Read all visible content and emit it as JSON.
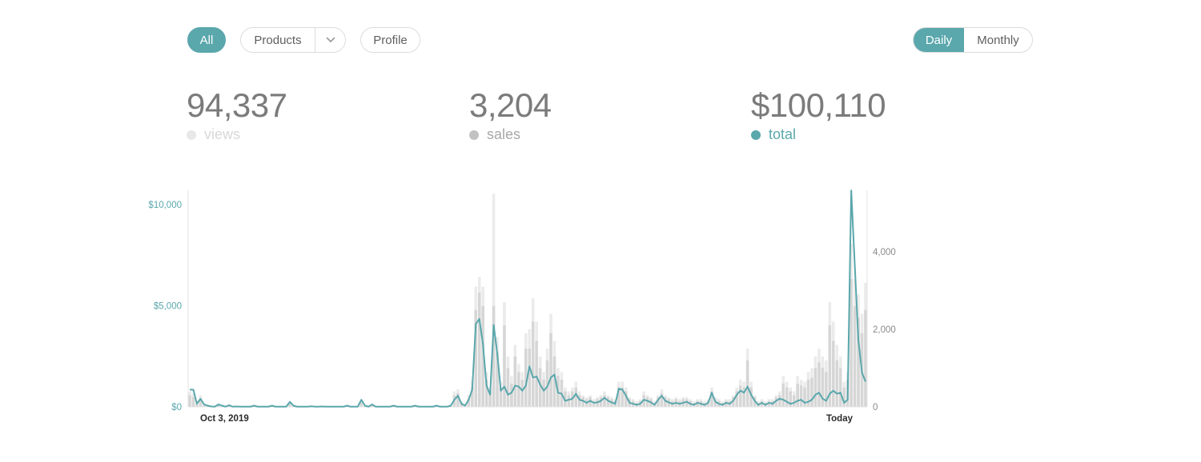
{
  "filters": {
    "all_label": "All",
    "products_label": "Products",
    "profile_label": "Profile",
    "active": "All"
  },
  "period_toggle": {
    "daily_label": "Daily",
    "monthly_label": "Monthly",
    "active": "Daily"
  },
  "icons": {
    "products_dropdown": "chevron-down-icon"
  },
  "stats": {
    "views": {
      "value": "94,337",
      "label": "views"
    },
    "sales": {
      "value": "3,204",
      "label": "sales"
    },
    "total": {
      "value": "$100,110",
      "label": "total"
    }
  },
  "colors": {
    "accent": "#5aa7ac",
    "views_bar": "#ebebeb",
    "sales_bar": "#d6d6d6"
  },
  "chart_data": {
    "type": "line",
    "x_start_label": "Oct 3, 2019",
    "x_end_label": "Today",
    "left_axis": {
      "ticks": [
        "$0",
        "$5,000",
        "$10,000"
      ],
      "tick_values": [
        0,
        5000,
        10000
      ],
      "ylim": [
        0,
        10000
      ]
    },
    "right_axis": {
      "ticks": [
        "0",
        "2,000",
        "4,000"
      ],
      "tick_values": [
        0,
        2000,
        4000
      ],
      "ylim": [
        0,
        4000
      ]
    },
    "series": [
      {
        "axis": "left",
        "style": "line",
        "values": [
          850,
          850,
          150,
          400,
          120,
          60,
          20,
          10,
          120,
          60,
          10,
          80,
          10,
          20,
          10,
          10,
          10,
          10,
          60,
          10,
          10,
          10,
          10,
          60,
          10,
          10,
          10,
          10,
          250,
          60,
          10,
          10,
          10,
          10,
          30,
          10,
          10,
          20,
          10,
          10,
          10,
          10,
          10,
          10,
          60,
          10,
          10,
          10,
          350,
          60,
          10,
          120,
          10,
          10,
          10,
          10,
          10,
          60,
          10,
          10,
          10,
          10,
          10,
          60,
          10,
          10,
          10,
          10,
          10,
          60,
          10,
          10,
          10,
          60,
          350,
          550,
          150,
          60,
          350,
          850,
          4100,
          4350,
          3100,
          1050,
          600,
          4050,
          2650,
          800,
          1000,
          600,
          700,
          1050,
          1000,
          800,
          1050,
          2000,
          1450,
          1500,
          1100,
          800,
          1000,
          1450,
          1600,
          700,
          650,
          300,
          350,
          400,
          650,
          350,
          300,
          200,
          300,
          200,
          220,
          300,
          450,
          300,
          220,
          150,
          900,
          850,
          550,
          200,
          150,
          100,
          150,
          350,
          300,
          220,
          100,
          350,
          550,
          300,
          220,
          150,
          200,
          150,
          200,
          250,
          150,
          100,
          200,
          150,
          100,
          200,
          700,
          250,
          150,
          100,
          200,
          150,
          300,
          600,
          800,
          700,
          1000,
          600,
          300,
          100,
          200,
          100,
          200,
          150,
          300,
          400,
          350,
          250,
          150,
          200,
          300,
          350,
          200,
          250,
          350,
          600,
          700,
          400,
          300,
          650,
          800,
          650,
          700,
          200,
          350,
          10700,
          7000,
          3300,
          1700,
          1250
        ]
      },
      {
        "axis": "right",
        "style": "bar",
        "name": "sales",
        "values": [
          300,
          250,
          60,
          200,
          40,
          20,
          10,
          5,
          40,
          20,
          5,
          30,
          5,
          10,
          5,
          5,
          5,
          5,
          20,
          5,
          5,
          5,
          5,
          20,
          5,
          5,
          5,
          5,
          80,
          20,
          5,
          5,
          5,
          5,
          10,
          5,
          5,
          10,
          5,
          5,
          5,
          5,
          5,
          5,
          20,
          5,
          5,
          5,
          100,
          20,
          5,
          40,
          5,
          5,
          5,
          5,
          5,
          20,
          5,
          5,
          5,
          5,
          5,
          20,
          5,
          5,
          5,
          5,
          5,
          20,
          5,
          5,
          5,
          20,
          300,
          350,
          100,
          50,
          200,
          500,
          2500,
          2950,
          2600,
          700,
          400,
          2600,
          1400,
          500,
          2100,
          1000,
          600,
          1300,
          900,
          700,
          1500,
          1500,
          2200,
          1700,
          1000,
          700,
          1200,
          1900,
          1300,
          800,
          700,
          400,
          300,
          400,
          500,
          300,
          250,
          200,
          250,
          150,
          200,
          250,
          300,
          250,
          200,
          150,
          500,
          500,
          400,
          200,
          150,
          100,
          150,
          300,
          250,
          200,
          100,
          250,
          350,
          250,
          200,
          150,
          200,
          150,
          200,
          200,
          150,
          100,
          150,
          150,
          100,
          150,
          400,
          200,
          150,
          100,
          150,
          150,
          250,
          400,
          550,
          500,
          1200,
          500,
          250,
          100,
          150,
          100,
          150,
          150,
          250,
          300,
          600,
          500,
          400,
          300,
          600,
          550,
          500,
          700,
          750,
          1000,
          1150,
          1000,
          900,
          2100,
          1700,
          1200,
          1000,
          500,
          700,
          3300,
          2600,
          2300,
          1900,
          2500
        ]
      },
      {
        "axis": "right",
        "style": "bar",
        "name": "views",
        "values": [
          400,
          350,
          80,
          300,
          60,
          30,
          15,
          10,
          60,
          30,
          10,
          40,
          10,
          15,
          10,
          10,
          10,
          10,
          30,
          10,
          10,
          10,
          10,
          30,
          10,
          10,
          10,
          10,
          120,
          30,
          10,
          10,
          10,
          10,
          15,
          10,
          10,
          15,
          10,
          10,
          10,
          10,
          10,
          10,
          30,
          10,
          10,
          10,
          150,
          30,
          10,
          60,
          10,
          10,
          10,
          10,
          10,
          30,
          10,
          10,
          10,
          10,
          10,
          30,
          10,
          10,
          10,
          10,
          10,
          30,
          10,
          10,
          10,
          30,
          400,
          450,
          150,
          80,
          300,
          700,
          3100,
          3350,
          3100,
          900,
          500,
          5500,
          1800,
          650,
          2700,
          1300,
          800,
          1600,
          1100,
          900,
          1900,
          2000,
          2800,
          2200,
          1300,
          900,
          1500,
          2400,
          1700,
          1000,
          900,
          500,
          400,
          500,
          650,
          400,
          300,
          250,
          300,
          200,
          250,
          300,
          400,
          300,
          250,
          200,
          650,
          650,
          500,
          250,
          200,
          150,
          200,
          400,
          300,
          250,
          150,
          300,
          450,
          300,
          250,
          200,
          250,
          200,
          250,
          250,
          200,
          150,
          200,
          200,
          150,
          200,
          500,
          250,
          200,
          150,
          200,
          200,
          300,
          500,
          700,
          650,
          1500,
          650,
          300,
          150,
          200,
          150,
          200,
          200,
          300,
          400,
          800,
          650,
          500,
          400,
          800,
          700,
          650,
          900,
          1000,
          1300,
          1500,
          1300,
          1200,
          2700,
          2200,
          1600,
          1300,
          650,
          900,
          4200,
          3300,
          2900,
          2400,
          3200
        ]
      }
    ]
  }
}
